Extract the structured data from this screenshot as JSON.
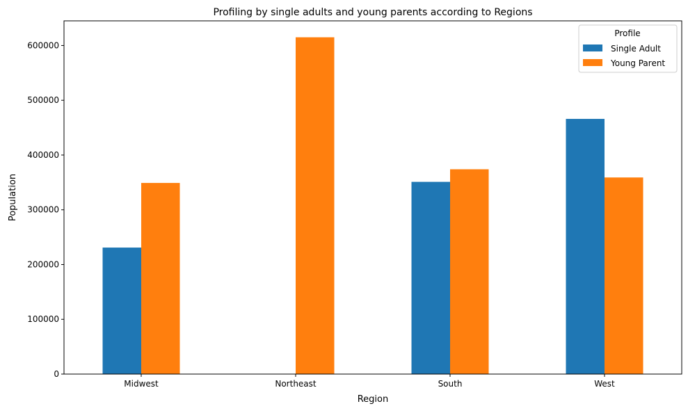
{
  "chart_data": {
    "type": "bar",
    "title": "Profiling by single adults and young parents according to Regions",
    "xlabel": "Region",
    "ylabel": "Population",
    "categories": [
      "Midwest",
      "Northeast",
      "South",
      "West"
    ],
    "series": [
      {
        "name": "Single Adult",
        "color": "#1f77b4",
        "values": [
          231000,
          0,
          351000,
          466000
        ]
      },
      {
        "name": "Young Parent",
        "color": "#ff7f0e",
        "values": [
          349000,
          615000,
          374000,
          359000
        ]
      }
    ],
    "ylim": [
      0,
      645000
    ],
    "yticks": [
      0,
      100000,
      200000,
      300000,
      400000,
      500000,
      600000
    ],
    "ytick_labels": [
      "0",
      "100000",
      "200000",
      "300000",
      "400000",
      "500000",
      "600000"
    ],
    "grid": false,
    "legend": {
      "title": "Profile",
      "placement": "top-right"
    }
  }
}
